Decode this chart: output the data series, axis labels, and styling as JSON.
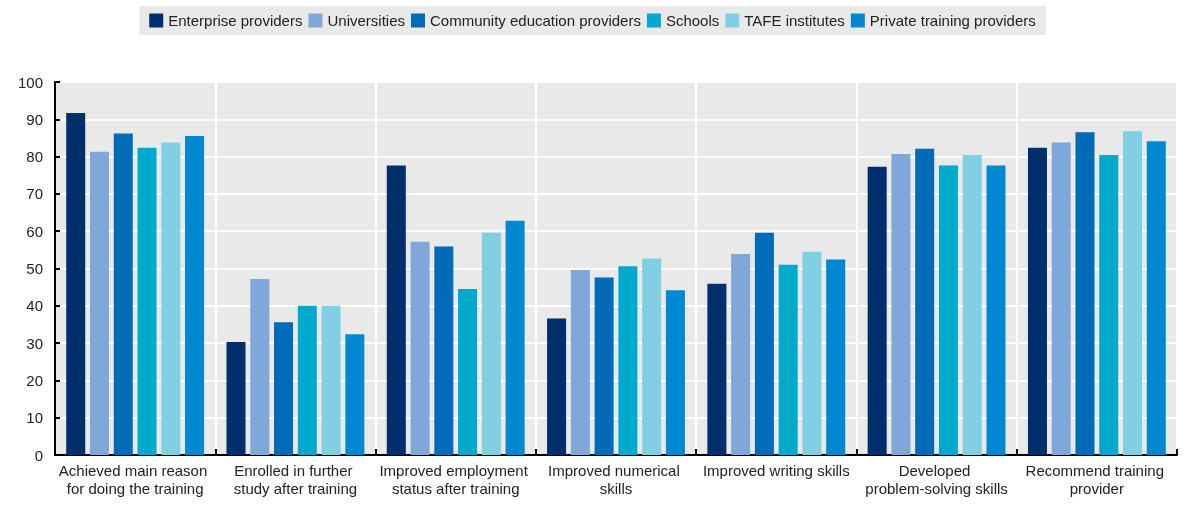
{
  "chart_data": {
    "type": "bar",
    "categories": [
      "Achieved main reason for doing the training",
      "Enrolled in further study after training",
      "Improved employment status after training",
      "Improved numerical skills",
      "Improved writing skills",
      "Developed problem-solving skills",
      "Recommend training provider"
    ],
    "series": [
      {
        "name": "Enterprise providers",
        "color": "#002f6c",
        "values": [
          91.7,
          30.3,
          77.6,
          36.6,
          45.9,
          77.3,
          82.4
        ]
      },
      {
        "name": "Universities",
        "color": "#7fa7d9",
        "values": [
          81.3,
          47.2,
          57.2,
          49.6,
          53.9,
          80.7,
          83.8
        ]
      },
      {
        "name": "Community education providers",
        "color": "#006bb6",
        "values": [
          86.2,
          35.6,
          55.9,
          47.6,
          59.6,
          82.1,
          86.5
        ]
      },
      {
        "name": "Schools",
        "color": "#00aacc",
        "values": [
          82.4,
          40,
          44.5,
          50.6,
          51,
          77.6,
          80.4
        ]
      },
      {
        "name": "TAFE institutes",
        "color": "#81cfe3",
        "values": [
          83.8,
          40,
          59.6,
          52.7,
          54.5,
          80.4,
          86.8
        ]
      },
      {
        "name": "Private training providers",
        "color": "#0088d1",
        "values": [
          85.5,
          32.4,
          62.8,
          44.2,
          52.4,
          77.6,
          84.1
        ]
      }
    ],
    "ylim": [
      0,
      100
    ],
    "yticks": [
      0,
      10,
      20,
      30,
      40,
      50,
      60,
      70,
      80,
      90,
      100
    ],
    "grid": true,
    "legend": "top"
  }
}
